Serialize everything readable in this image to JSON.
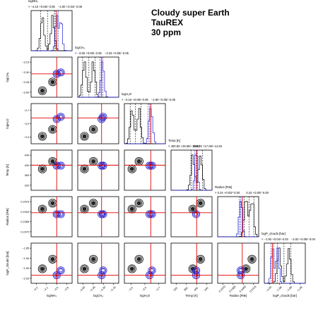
{
  "header": {
    "title_line1": "Cloudy super Earth",
    "title_line2": "TauREX",
    "title_line3": "30 ppm"
  },
  "colors": {
    "retrieval_a": "#000000",
    "retrieval_b": "#1c1ccf",
    "truth": "#e00000"
  },
  "chart_data": {
    "type": "corner",
    "parameters": [
      {
        "label": "logNH₃",
        "title_left": "−4.10",
        "title_left_err": "+0.06/−0.05",
        "title_right": "−4.00",
        "title_right_err": "+0.04/−0.05",
        "ticks": [
          "−4.2",
          "−4.1",
          "−4.0",
          "−3.9"
        ],
        "range": [
          -4.25,
          -3.85
        ],
        "truth": -4.0,
        "a_modes": [
          -4.14,
          -4.04
        ],
        "b_modes": [
          -4.0,
          -3.96
        ]
      },
      {
        "label": "logCH₄",
        "title_left": "−3.50",
        "title_left_err": "+0.05/−0.06",
        "title_right": "−3.33",
        "title_right_err": "+0.05/−0.05",
        "ticks": [
          "−3.60",
          "−3.45",
          "−3.30",
          "−3.15"
        ],
        "range": [
          -3.65,
          -3.1
        ],
        "truth": -3.33,
        "a_modes": [
          -3.56,
          -3.44
        ],
        "b_modes": [
          -3.33,
          -3.31
        ]
      },
      {
        "label": "logH₂O",
        "title_left": "−3.16",
        "title_left_err": "+0.08/−0.05",
        "title_right": "−2.90",
        "title_right_err": "+0.05/−0.05",
        "ticks": [
          "−3.3",
          "−3.0",
          "−2.7"
        ],
        "range": [
          -3.35,
          -2.65
        ],
        "truth": -2.9,
        "a_modes": [
          -3.22,
          -3.1
        ],
        "b_modes": [
          -2.92,
          -2.88
        ]
      },
      {
        "label": "Temp [K]",
        "title_left": "400.50",
        "title_left_err": "+29.06/−18.90",
        "title_right": "398.26",
        "title_right_err": "+17.06/−14.94",
        "ticks": [
          "320",
          "360",
          "400",
          "440"
        ],
        "range": [
          300,
          460
        ],
        "truth": 400,
        "a_modes": [
          385,
          415
        ],
        "b_modes": [
          398
        ]
      },
      {
        "label": "Radius [R⊕]",
        "title_left": "0.24",
        "title_left_err": "+0.00/−0.00",
        "title_right": "0.24",
        "title_right_err": "+0.00/−0.00",
        "ticks": [
          "0.2370",
          "0.2385",
          "0.2400",
          "0.2415"
        ],
        "range": [
          0.2365,
          0.242
        ],
        "truth": 0.2398,
        "a_modes": [
          0.2403,
          0.2411
        ],
        "b_modes": [
          0.2396
        ]
      },
      {
        "label": "logP_clouds [bar]",
        "title_left": "−1.92",
        "title_left_err": "+0.04/−0.03",
        "title_right": "−2.02",
        "title_right_err": "+0.05/−0.04",
        "ticks": [
          "−2.00",
          "−1.95",
          "−1.90",
          "−1.85"
        ],
        "range": [
          -2.05,
          -1.8
        ],
        "truth": -2.0,
        "a_modes": [
          -1.96,
          -1.9
        ],
        "b_modes": [
          -2.0,
          -1.97
        ]
      }
    ]
  }
}
